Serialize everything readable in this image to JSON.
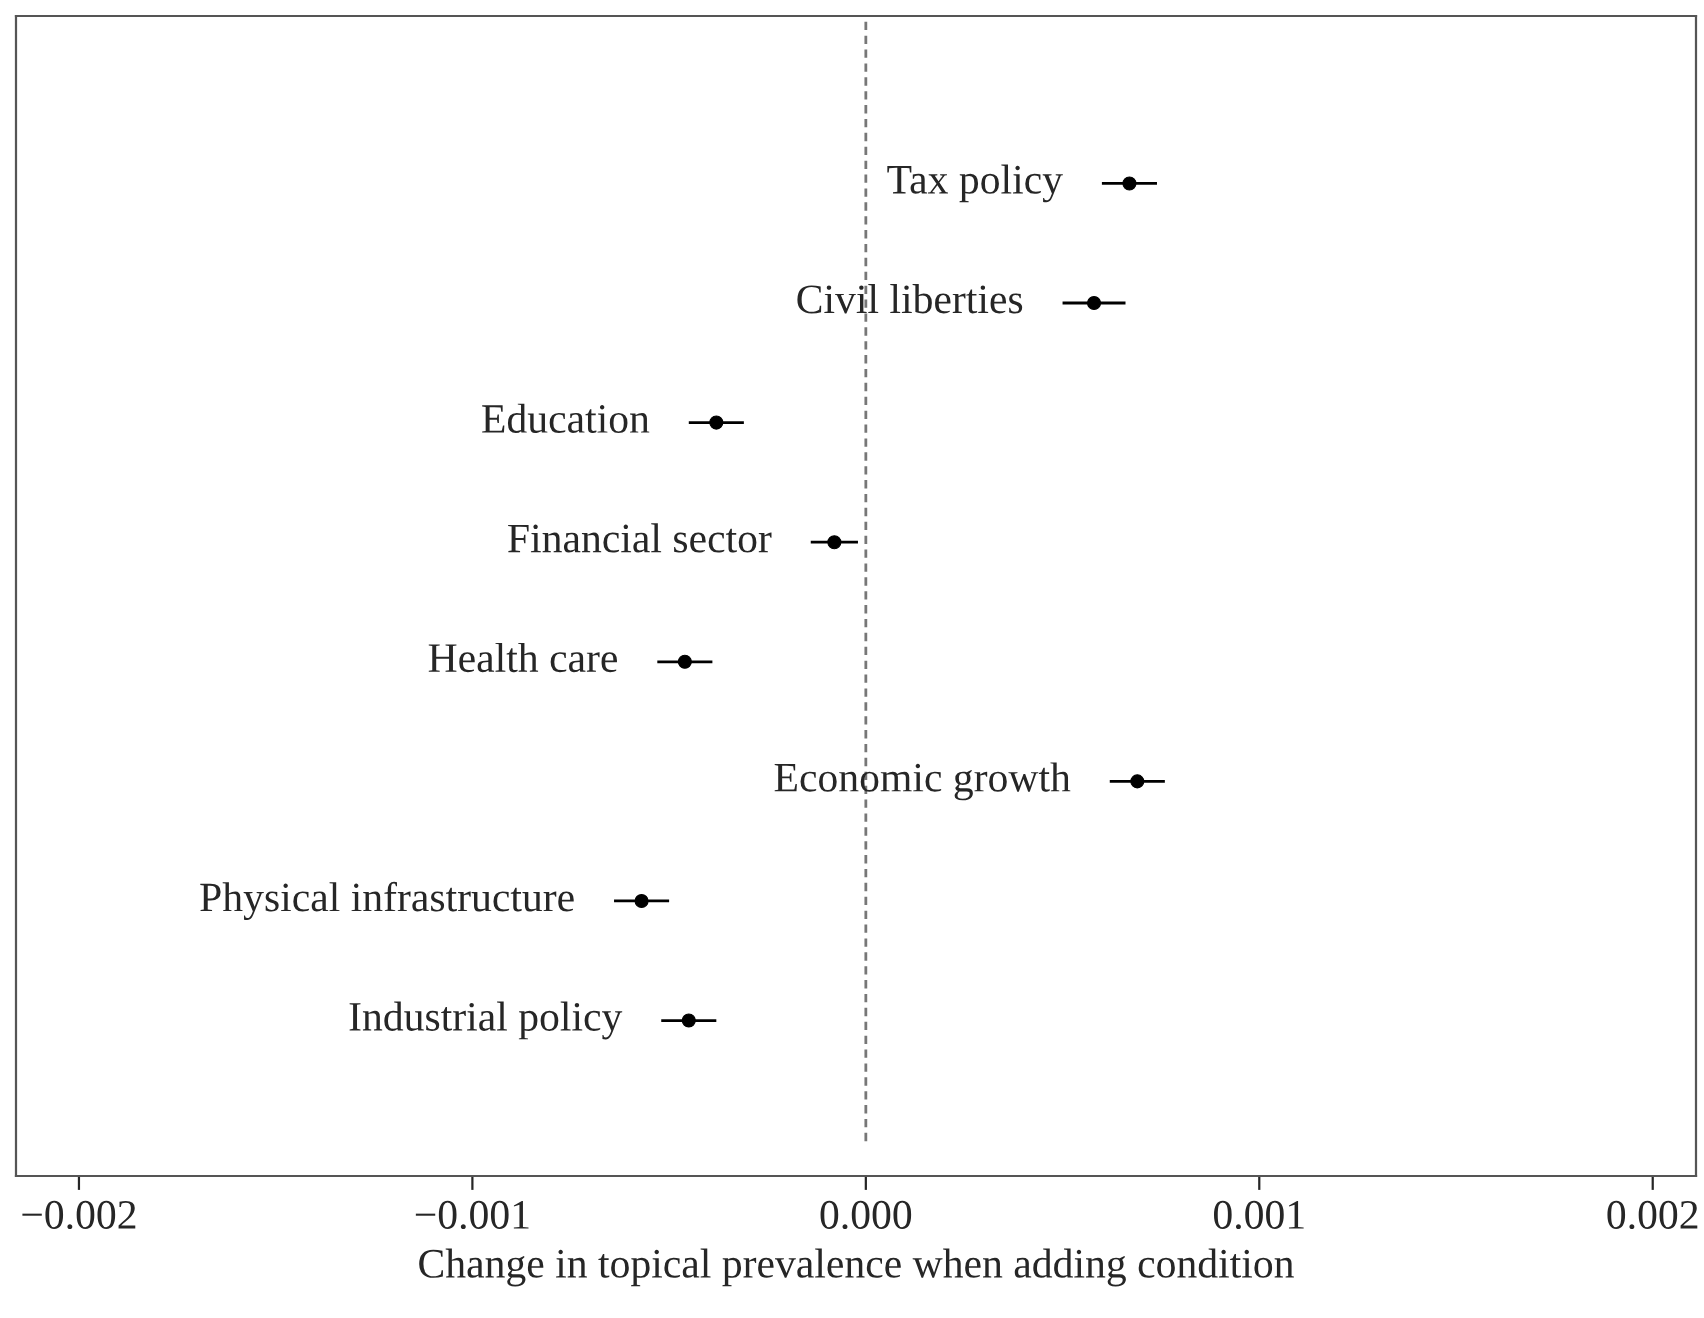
{
  "chart_data": {
    "type": "scatter",
    "orientation": "horizontal",
    "xlabel": "Change in topical prevalence when adding condition",
    "categories": [
      "Tax policy",
      "Civil liberties",
      "Education",
      "Financial sector",
      "Health care",
      "Economic growth",
      "Physical infrastructure",
      "Industrial policy"
    ],
    "values": [
      0.00067,
      0.00058,
      -0.00038,
      -8e-05,
      -0.00046,
      0.00069,
      -0.00057,
      -0.00045
    ],
    "errors": [
      7e-05,
      8e-05,
      7e-05,
      6e-05,
      7e-05,
      7e-05,
      7e-05,
      7e-05
    ],
    "color": "#000000",
    "marker": "circle",
    "xlim": [
      -0.00216,
      0.00211
    ],
    "xticks": [
      {
        "value": -0.002,
        "label": "−0.002"
      },
      {
        "value": -0.001,
        "label": "−0.001"
      },
      {
        "value": 0,
        "label": "0.000"
      },
      {
        "value": 0.001,
        "label": "0.001"
      },
      {
        "value": 0.002,
        "label": "0.002"
      }
    ],
    "ref_lines": [
      {
        "axis": "x",
        "value": 0,
        "color": "#777777",
        "line_style": "dashed"
      }
    ],
    "tick_labels": "x",
    "grid": false
  }
}
